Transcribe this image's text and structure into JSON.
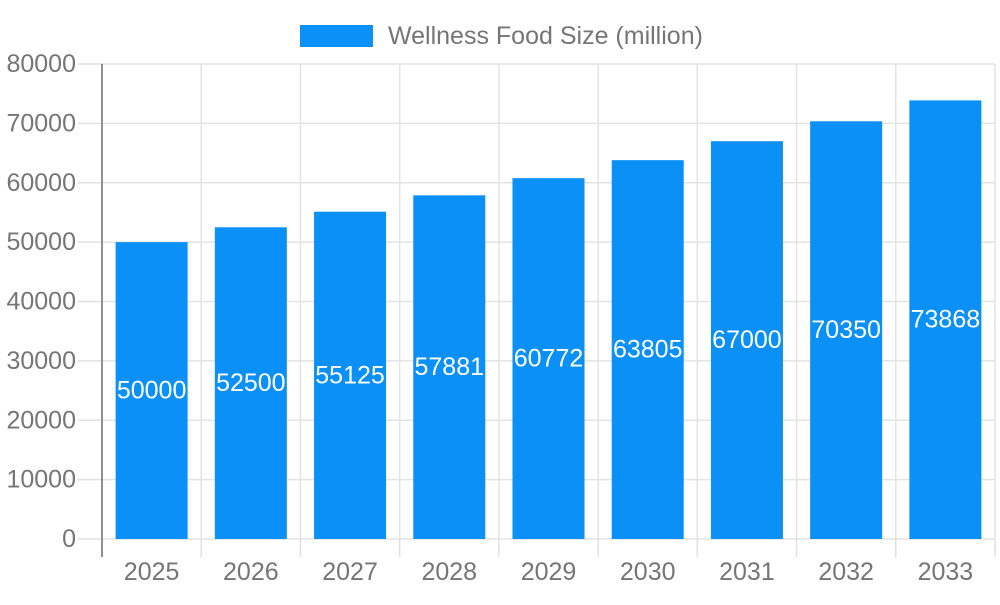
{
  "chart_data": {
    "type": "bar",
    "title": "",
    "legend_label": "Wellness Food Size (million)",
    "legend_position": "top-center",
    "categories": [
      "2025",
      "2026",
      "2027",
      "2028",
      "2029",
      "2030",
      "2031",
      "2032",
      "2033"
    ],
    "values": [
      50000,
      52500,
      55125,
      57881,
      60772,
      63805,
      67000,
      70350,
      73868
    ],
    "xlabel": "",
    "ylabel": "",
    "ylim": [
      0,
      80000
    ],
    "yticks": [
      0,
      10000,
      20000,
      30000,
      40000,
      50000,
      60000,
      70000,
      80000
    ],
    "grid": true,
    "colors": {
      "bar": "#0a90f7",
      "bar_value_text": "#ffffff",
      "axis_text": "#757575",
      "grid_line": "#e3e3e3",
      "tick_line": "#e0e0e0",
      "axis_line": "#8f8f8f",
      "background": "#ffffff"
    }
  }
}
